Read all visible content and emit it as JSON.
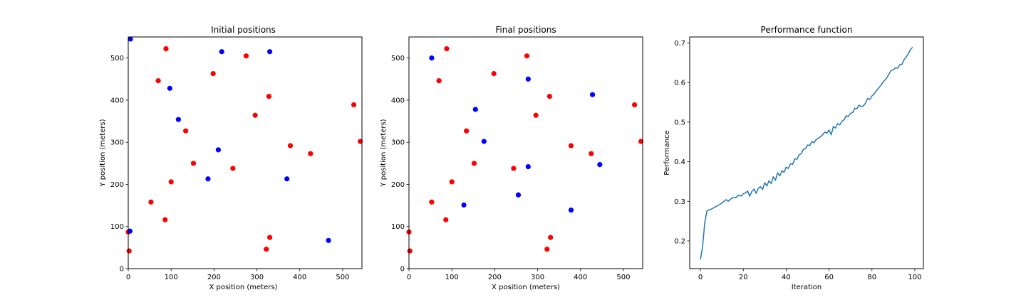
{
  "chart_data": [
    {
      "type": "scatter",
      "title": "Initial positions",
      "xlabel": "X position (meters)",
      "ylabel": "Y position (meters)",
      "xlim": [
        0,
        545
      ],
      "ylim": [
        0,
        550
      ],
      "xticks": [
        0,
        100,
        200,
        300,
        400,
        500
      ],
      "yticks": [
        0,
        100,
        200,
        300,
        400,
        500
      ],
      "grid": false,
      "series": [
        {
          "color": "#ff0000",
          "points": [
            [
              88,
              522
            ],
            [
              275,
              505
            ],
            [
              70,
              446
            ],
            [
              198,
              463
            ],
            [
              328,
              409
            ],
            [
              526,
              389
            ],
            [
              296,
              364
            ],
            [
              134,
              327
            ],
            [
              541,
              302
            ],
            [
              378,
              292
            ],
            [
              425,
              273
            ],
            [
              152,
              250
            ],
            [
              244,
              238
            ],
            [
              100,
              206
            ],
            [
              53,
              158
            ],
            [
              86,
              116
            ],
            [
              0,
              87
            ],
            [
              330,
              74
            ],
            [
              322,
              46
            ],
            [
              2,
              42
            ]
          ]
        },
        {
          "color": "#0000ff",
          "points": [
            [
              5,
              545
            ],
            [
              218,
              515
            ],
            [
              330,
              515
            ],
            [
              97,
              428
            ],
            [
              117,
              354
            ],
            [
              210,
              282
            ],
            [
              186,
              213
            ],
            [
              370,
              213
            ],
            [
              4,
              89
            ],
            [
              467,
              67
            ]
          ]
        }
      ]
    },
    {
      "type": "scatter",
      "title": "Final positions",
      "xlabel": "X position (meters)",
      "ylabel": "Y position (meters)",
      "xlim": [
        0,
        545
      ],
      "ylim": [
        0,
        550
      ],
      "xticks": [
        0,
        100,
        200,
        300,
        400,
        500
      ],
      "yticks": [
        0,
        100,
        200,
        300,
        400,
        500
      ],
      "grid": false,
      "series": [
        {
          "color": "#ff0000",
          "points": [
            [
              88,
              522
            ],
            [
              275,
              505
            ],
            [
              70,
              446
            ],
            [
              198,
              463
            ],
            [
              328,
              409
            ],
            [
              526,
              389
            ],
            [
              296,
              364
            ],
            [
              134,
              327
            ],
            [
              541,
              302
            ],
            [
              378,
              292
            ],
            [
              425,
              273
            ],
            [
              152,
              250
            ],
            [
              244,
              238
            ],
            [
              100,
              206
            ],
            [
              53,
              158
            ],
            [
              86,
              116
            ],
            [
              0,
              87
            ],
            [
              330,
              74
            ],
            [
              322,
              46
            ],
            [
              2,
              42
            ]
          ]
        },
        {
          "color": "#0000ff",
          "points": [
            [
              53,
              500
            ],
            [
              278,
              450
            ],
            [
              428,
              413
            ],
            [
              155,
              378
            ],
            [
              175,
              302
            ],
            [
              445,
              247
            ],
            [
              278,
              242
            ],
            [
              255,
              175
            ],
            [
              128,
              151
            ],
            [
              378,
              139
            ]
          ]
        }
      ]
    },
    {
      "type": "line",
      "title": "Performance function",
      "xlabel": "Iteration",
      "ylabel": "Performance",
      "xlim": [
        -5,
        104
      ],
      "ylim": [
        0.13,
        0.715
      ],
      "xticks": [
        0,
        20,
        40,
        60,
        80,
        100
      ],
      "yticks": [
        0.2,
        0.3,
        0.4,
        0.5,
        0.6,
        0.7
      ],
      "ytick_labels": [
        "0.2",
        "0.3",
        "0.4",
        "0.5",
        "0.6",
        "0.7"
      ],
      "grid": false,
      "series": [
        {
          "color": "#1f77b4",
          "x": [
            0,
            1,
            2,
            3,
            4,
            5,
            6,
            7,
            8,
            9,
            10,
            11,
            12,
            13,
            14,
            15,
            16,
            17,
            18,
            19,
            20,
            21,
            22,
            23,
            24,
            25,
            26,
            27,
            28,
            29,
            30,
            31,
            32,
            33,
            34,
            35,
            36,
            37,
            38,
            39,
            40,
            41,
            42,
            43,
            44,
            45,
            46,
            47,
            48,
            49,
            50,
            51,
            52,
            53,
            54,
            55,
            56,
            57,
            58,
            59,
            60,
            61,
            62,
            63,
            64,
            65,
            66,
            67,
            68,
            69,
            70,
            71,
            72,
            73,
            74,
            75,
            76,
            77,
            78,
            79,
            80,
            81,
            82,
            83,
            84,
            85,
            86,
            87,
            88,
            89,
            90,
            91,
            92,
            93,
            94,
            95,
            96,
            97,
            98,
            99
          ],
          "y": [
            0.153,
            0.185,
            0.245,
            0.275,
            0.278,
            0.28,
            0.283,
            0.286,
            0.289,
            0.292,
            0.296,
            0.3,
            0.304,
            0.3,
            0.305,
            0.309,
            0.309,
            0.311,
            0.316,
            0.313,
            0.319,
            0.321,
            0.326,
            0.313,
            0.325,
            0.331,
            0.32,
            0.333,
            0.337,
            0.33,
            0.347,
            0.339,
            0.352,
            0.345,
            0.362,
            0.353,
            0.372,
            0.364,
            0.377,
            0.373,
            0.386,
            0.383,
            0.395,
            0.393,
            0.407,
            0.406,
            0.417,
            0.42,
            0.431,
            0.433,
            0.442,
            0.441,
            0.451,
            0.448,
            0.456,
            0.459,
            0.463,
            0.468,
            0.475,
            0.472,
            0.48,
            0.468,
            0.489,
            0.485,
            0.496,
            0.493,
            0.502,
            0.506,
            0.516,
            0.514,
            0.522,
            0.524,
            0.535,
            0.534,
            0.543,
            0.539,
            0.541,
            0.548,
            0.56,
            0.557,
            0.566,
            0.571,
            0.579,
            0.585,
            0.592,
            0.6,
            0.606,
            0.612,
            0.622,
            0.631,
            0.632,
            0.637,
            0.636,
            0.645,
            0.646,
            0.658,
            0.664,
            0.673,
            0.684,
            0.689
          ]
        }
      ]
    }
  ]
}
